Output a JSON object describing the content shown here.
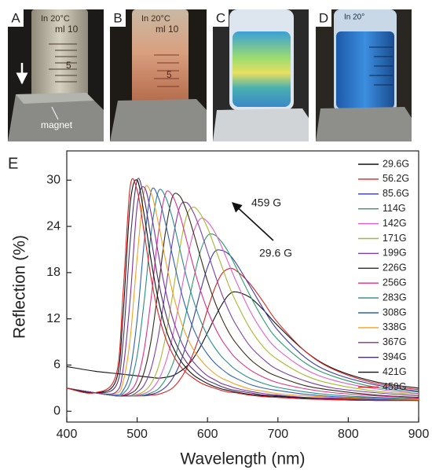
{
  "photos": [
    {
      "label": "A",
      "texts": [
        "In 20°C",
        "ml 10",
        "5",
        "magnet"
      ]
    },
    {
      "label": "B",
      "texts": [
        "In 20°C",
        "ml 10",
        "5"
      ]
    },
    {
      "label": "C"
    },
    {
      "label": "D",
      "texts": [
        "In 20°"
      ]
    }
  ],
  "chart_data": {
    "type": "line",
    "panel_label": "E",
    "x_label": "Wavelength (nm)",
    "y_label": "Reflection (%)",
    "annotations": [
      "459 G",
      "29.6 G"
    ],
    "xlim": [
      400,
      900
    ],
    "xticks": [
      400,
      500,
      600,
      700,
      800,
      900
    ],
    "ylim": [
      -1.4,
      33.8
    ],
    "yticks": [
      0,
      6,
      12,
      18,
      24,
      30
    ],
    "x": [
      400,
      440,
      470,
      480,
      490,
      500,
      510,
      520,
      530,
      540,
      550,
      560,
      570,
      580,
      590,
      600,
      610,
      620,
      630,
      640,
      660,
      680,
      700,
      740,
      780,
      840,
      900
    ],
    "series": [
      {
        "name": "29.6G",
        "color": "#111111",
        "values": [
          5.8,
          5.2,
          4.9,
          4.8,
          4.7,
          4.6,
          4.5,
          4.4,
          4.3,
          4.4,
          4.6,
          5.1,
          5.8,
          6.9,
          8.4,
          10.2,
          12.1,
          13.8,
          15.1,
          15.5,
          14.8,
          13.1,
          11.1,
          7.7,
          5.5,
          3.8,
          3.0
        ]
      },
      {
        "name": "56.2G",
        "color": "#e02020",
        "values": [
          3.0,
          2.4,
          2.0,
          2.0,
          2.0,
          2.0,
          2.0,
          2.1,
          2.2,
          2.5,
          3.0,
          4.0,
          5.5,
          7.6,
          10.2,
          13.2,
          15.9,
          17.8,
          18.5,
          18.3,
          16.6,
          14.1,
          11.5,
          7.7,
          5.4,
          3.6,
          2.8
        ]
      },
      {
        "name": "85.6G",
        "color": "#3a3aa8",
        "values": [
          3.0,
          2.4,
          2.0,
          2.0,
          2.0,
          2.0,
          2.1,
          2.2,
          2.5,
          3.1,
          4.2,
          6.0,
          8.7,
          12.0,
          15.6,
          18.7,
          20.7,
          20.9,
          20.4,
          19.3,
          16.3,
          13.2,
          10.5,
          6.9,
          4.9,
          3.4,
          2.6
        ]
      },
      {
        "name": "114G",
        "color": "#2a9a6a",
        "values": [
          3.0,
          2.4,
          2.0,
          2.0,
          2.0,
          2.0,
          2.1,
          2.4,
          2.9,
          4.1,
          6.0,
          9.0,
          12.9,
          17.1,
          20.8,
          22.8,
          22.9,
          22.0,
          20.6,
          18.8,
          15.1,
          11.8,
          9.3,
          6.2,
          4.5,
          3.1,
          2.5
        ]
      },
      {
        "name": "142G",
        "color": "#e060c8",
        "values": [
          3.0,
          2.4,
          2.0,
          2.0,
          2.0,
          2.1,
          2.3,
          2.8,
          4.0,
          6.2,
          9.6,
          14.2,
          19.2,
          23.2,
          25.0,
          24.6,
          23.3,
          21.4,
          19.2,
          17.0,
          13.1,
          10.1,
          8.0,
          5.4,
          4.0,
          2.9,
          2.3
        ]
      },
      {
        "name": "171G",
        "color": "#a8b830",
        "values": [
          3.0,
          2.4,
          2.0,
          2.0,
          2.0,
          2.2,
          2.6,
          3.6,
          5.7,
          9.5,
          14.9,
          20.8,
          25.3,
          26.5,
          25.6,
          23.8,
          21.4,
          18.9,
          16.4,
          14.3,
          10.8,
          8.3,
          6.7,
          4.6,
          3.5,
          2.6,
          2.2
        ]
      },
      {
        "name": "199G",
        "color": "#7b3fa8",
        "values": [
          3.0,
          2.4,
          2.0,
          2.0,
          2.0,
          2.5,
          3.4,
          5.6,
          9.7,
          15.5,
          21.9,
          26.4,
          27.1,
          25.8,
          23.5,
          20.7,
          17.9,
          15.3,
          13.1,
          11.3,
          8.5,
          6.7,
          5.4,
          3.9,
          3.0,
          2.4,
          2.0
        ]
      },
      {
        "name": "226G",
        "color": "#3a2a1a",
        "values": [
          3.0,
          2.4,
          2.0,
          2.0,
          2.3,
          3.0,
          5.1,
          9.3,
          15.9,
          23.1,
          27.8,
          28.0,
          26.1,
          23.2,
          20.0,
          16.9,
          14.3,
          12.1,
          10.3,
          8.9,
          6.8,
          5.4,
          4.5,
          3.3,
          2.7,
          2.1,
          1.8
        ]
      },
      {
        "name": "256G",
        "color": "#e0308a",
        "values": [
          3.0,
          2.4,
          2.0,
          2.1,
          2.6,
          4.1,
          8.0,
          14.8,
          23.0,
          28.2,
          28.0,
          25.7,
          22.3,
          18.8,
          15.7,
          13.1,
          11.0,
          9.3,
          8.0,
          6.9,
          5.4,
          4.4,
          3.7,
          2.9,
          2.4,
          2.0,
          1.7
        ]
      },
      {
        "name": "283G",
        "color": "#2a8a8a",
        "values": [
          3.0,
          2.4,
          2.0,
          2.3,
          3.6,
          7.2,
          14.3,
          23.2,
          28.5,
          27.9,
          25.1,
          21.3,
          17.5,
          14.4,
          11.8,
          9.8,
          8.3,
          7.1,
          6.2,
          5.4,
          4.3,
          3.6,
          3.1,
          2.5,
          2.1,
          1.8,
          1.6
        ]
      },
      {
        "name": "308G",
        "color": "#2f5fb8",
        "values": [
          3.0,
          2.4,
          2.1,
          2.7,
          5.2,
          11.9,
          21.9,
          28.6,
          27.8,
          24.5,
          20.3,
          16.4,
          13.2,
          10.7,
          8.8,
          7.4,
          6.3,
          5.5,
          4.8,
          4.3,
          3.5,
          3.0,
          2.7,
          2.2,
          1.9,
          1.7,
          1.5
        ]
      },
      {
        "name": "338G",
        "color": "#f0a020",
        "values": [
          3.0,
          2.4,
          2.3,
          3.8,
          9.3,
          19.9,
          28.6,
          28.3,
          24.5,
          19.8,
          15.6,
          12.3,
          9.8,
          8.0,
          6.7,
          5.7,
          4.9,
          4.3,
          3.9,
          3.5,
          2.9,
          2.6,
          2.3,
          2.0,
          1.8,
          1.6,
          1.5
        ]
      },
      {
        "name": "367G",
        "color": "#8030a0",
        "values": [
          3.0,
          2.4,
          2.5,
          5.4,
          14.5,
          26.6,
          29.1,
          25.6,
          20.5,
          15.8,
          12.2,
          9.6,
          7.7,
          6.4,
          5.4,
          4.6,
          4.1,
          3.6,
          3.3,
          3.0,
          2.6,
          2.3,
          2.1,
          1.8,
          1.7,
          1.5,
          1.4
        ]
      },
      {
        "name": "394G",
        "color": "#4a3070",
        "values": [
          3.0,
          2.4,
          3.3,
          9.0,
          21.9,
          30.0,
          27.6,
          22.3,
          17.0,
          12.9,
          9.9,
          7.9,
          6.4,
          5.4,
          4.6,
          4.0,
          3.6,
          3.2,
          2.9,
          2.7,
          2.4,
          2.1,
          2.0,
          1.7,
          1.6,
          1.5,
          1.4
        ]
      },
      {
        "name": "421G",
        "color": "#111111",
        "values": [
          3.0,
          2.4,
          4.0,
          12.5,
          26.8,
          30.0,
          25.5,
          19.5,
          14.5,
          10.9,
          8.5,
          6.8,
          5.6,
          4.7,
          4.1,
          3.6,
          3.2,
          2.9,
          2.7,
          2.5,
          2.2,
          2.0,
          1.9,
          1.7,
          1.5,
          1.4,
          1.4
        ]
      },
      {
        "name": "459G",
        "color": "#e02020",
        "values": [
          3.0,
          2.4,
          4.7,
          15.3,
          29.1,
          28.7,
          23.2,
          17.2,
          12.7,
          9.6,
          7.5,
          6.0,
          5.0,
          4.3,
          3.7,
          3.3,
          3.0,
          2.7,
          2.5,
          2.4,
          2.1,
          1.9,
          1.8,
          1.6,
          1.5,
          1.4,
          1.4
        ]
      }
    ]
  }
}
